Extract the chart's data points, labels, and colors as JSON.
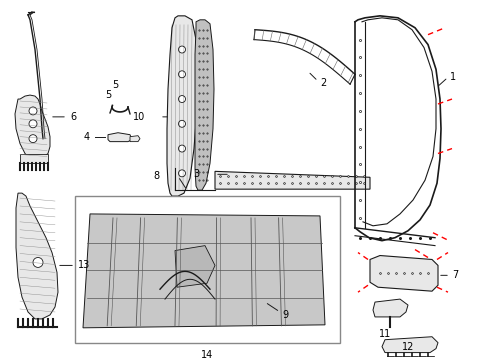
{
  "bg_color": "#ffffff",
  "line_color": "#1a1a1a",
  "gray_fill": "#cccccc",
  "gray_light": "#e8e8e8",
  "red_color": "#ff0000",
  "label_fs": 7,
  "parts_layout": {
    "part1_label": "1",
    "part2_label": "2",
    "part3_label": "3",
    "part4_label": "4",
    "part5_label": "5",
    "part6_label": "6",
    "part7_label": "7",
    "part8_label": "8",
    "part9_label": "9",
    "part10_label": "10",
    "part11_label": "11",
    "part12_label": "12",
    "part13_label": "13",
    "part14_label": "14"
  }
}
